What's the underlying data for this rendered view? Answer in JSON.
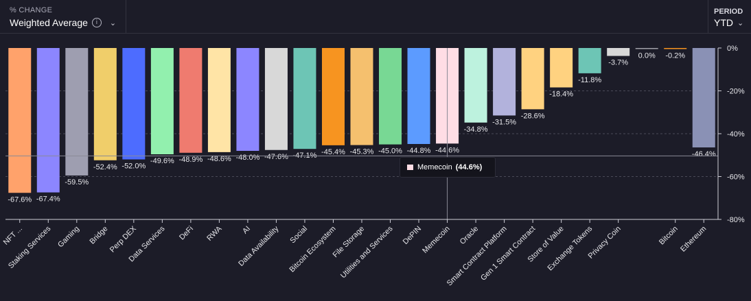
{
  "header": {
    "metric_caption": "% CHANGE",
    "metric_value": "Weighted Average",
    "period_caption": "PERIOD",
    "period_value": "YTD"
  },
  "tooltip": {
    "label": "Memecoin",
    "value": "(44.6%)",
    "color": "#ffdde5"
  },
  "chart_data": {
    "type": "bar",
    "ylim": [
      -80,
      0
    ],
    "yticks": [
      0,
      -20,
      -40,
      -60,
      -80
    ],
    "ytick_labels": [
      "0%",
      "-20%",
      "-40%",
      "-60%",
      "-80%"
    ],
    "grid": true,
    "categories": [
      "NFT ...",
      "Staking Services",
      "Gaming",
      "Bridge",
      "Perp DEX",
      "Data Services",
      "DeFi",
      "RWA",
      "AI",
      "Data Availability",
      "Social",
      "Bitcoin Ecosystem",
      "File Storage",
      "Utilities and Services",
      "DePIN",
      "Memecoin",
      "Oracle",
      "Smart Contract Platform",
      "Gen 1 Smart Contract",
      "Store of Value",
      "Exchange Tokens",
      "Privacy Coin",
      "",
      "Bitcoin",
      "Ethereum"
    ],
    "values": [
      -67.6,
      -67.4,
      -59.5,
      -52.4,
      -52.0,
      -49.6,
      -48.9,
      -48.6,
      -48.0,
      -47.6,
      -47.1,
      -45.4,
      -45.3,
      -45.0,
      -44.8,
      -44.6,
      -34.8,
      -31.5,
      -28.6,
      -18.4,
      -11.8,
      -3.7,
      0.0,
      -0.2,
      -46.4
    ],
    "value_labels": [
      "-67.6%",
      "-67.4%",
      "-59.5%",
      "-52.4%",
      "-52.0%",
      "-49.6%",
      "-48.9%",
      "-48.6%",
      "-48.0%",
      "-47.6%",
      "-47.1%",
      "-45.4%",
      "-45.3%",
      "-45.0%",
      "-44.8%",
      "-44.6%",
      "-34.8%",
      "-31.5%",
      "-28.6%",
      "-18.4%",
      "-11.8%",
      "-3.7%",
      "0.0%",
      "-0.2%",
      "-46.4%"
    ],
    "colors": [
      "#ffa26b",
      "#8c86ff",
      "#9e9eb0",
      "#f0ce6a",
      "#4d6cff",
      "#92f0ae",
      "#ef7b6f",
      "#ffe4a6",
      "#8c86ff",
      "#d8d8d8",
      "#6dc5b5",
      "#f79420",
      "#f5c06e",
      "#78d894",
      "#5c9bff",
      "#ffdde5",
      "#bdf2de",
      "#b2b2dc",
      "#ffd280",
      "#ffd280",
      "#6dc5b5",
      "#d8d8d8",
      "#a0a0a8",
      "#f79420",
      "#8a91b5"
    ]
  }
}
